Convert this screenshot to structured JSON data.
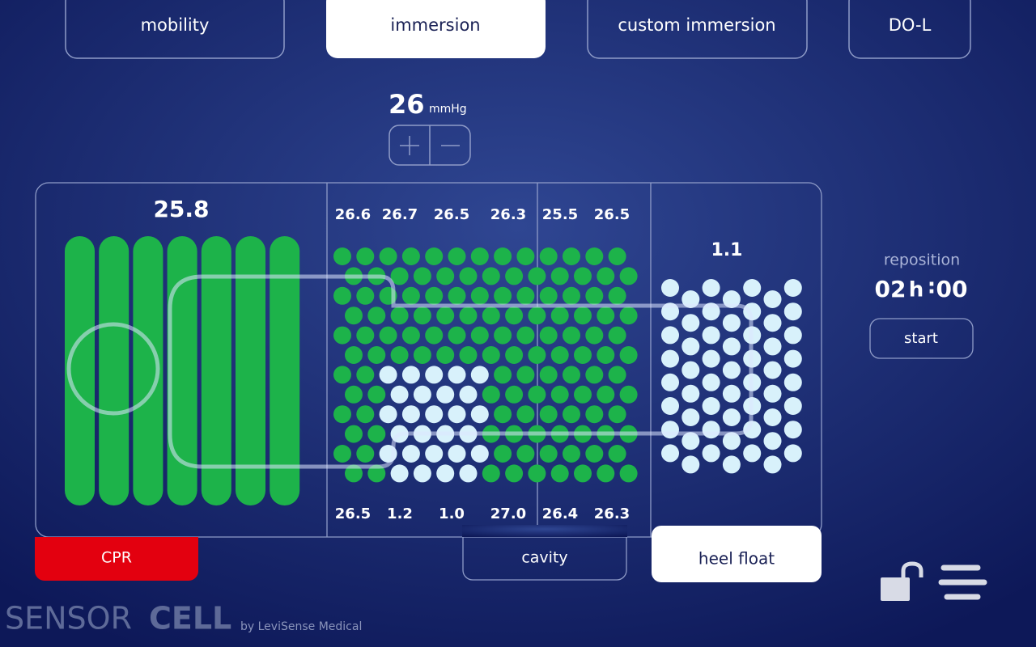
{
  "tabs": [
    "mobility",
    "immersion",
    "custom immersion",
    "DO-L"
  ],
  "pressure": {
    "value": "26",
    "unit": "mmHg"
  },
  "head_zone": {
    "value": "25.8"
  },
  "body_top_values": [
    "26.6",
    "26.7",
    "26.5",
    "26.3",
    "25.5",
    "26.5"
  ],
  "body_bottom_values": [
    "26.5",
    "1.2",
    "1.0",
    "27.0",
    "26.4",
    "26.3"
  ],
  "heel_zone": {
    "value": "1.1"
  },
  "reposition": {
    "label": "reposition",
    "hours": "02",
    "hours_unit": "h",
    "separator": ":",
    "minutes": "00",
    "button": "start"
  },
  "modes": [
    "CPR",
    "cavity",
    "heel float"
  ],
  "brand": {
    "light": "SENSOR",
    "bold": "CELL",
    "byline": "by LeviSense Medical"
  }
}
